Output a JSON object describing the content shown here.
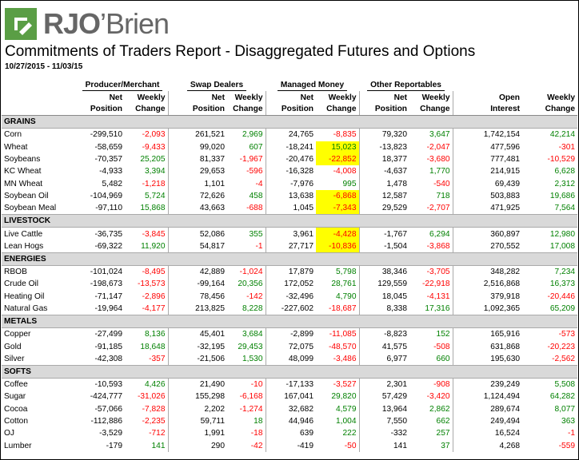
{
  "logo": {
    "text_r": "RJO",
    "text_rest": "’Brien",
    "brand_color": "#5a9e45"
  },
  "report": {
    "title": "Commitments of Traders Report - Disaggregated Futures and Options",
    "date_range": "10/27/2015 - 11/03/15"
  },
  "groups": [
    "Producer/Merchant",
    "Swap Dealers",
    "Managed Money",
    "Other Reportables"
  ],
  "sub_headers": {
    "net_position": [
      "Net",
      "Position"
    ],
    "weekly_change": [
      "Weekly",
      "Change"
    ],
    "open_interest": [
      "Open",
      "Interest"
    ]
  },
  "colors": {
    "positive": "#008000",
    "negative": "#ff0000",
    "highlight": "#ffff00",
    "section": "#d9d9d9"
  },
  "sections": [
    {
      "name": "GRAINS",
      "rows": [
        {
          "name": "Corn",
          "v": [
            "-299,510",
            "-2,093",
            "261,521",
            "2,969",
            "24,765",
            "-8,835",
            "79,320",
            "3,647",
            "1,742,154",
            "42,214"
          ],
          "hl": []
        },
        {
          "name": "Wheat",
          "v": [
            "-58,659",
            "-9,433",
            "99,020",
            "607",
            "-18,241",
            "15,023",
            "-13,823",
            "-2,047",
            "477,596",
            "-301"
          ],
          "hl": [
            5
          ]
        },
        {
          "name": "Soybeans",
          "v": [
            "-70,357",
            "25,205",
            "81,337",
            "-1,967",
            "-20,476",
            "-22,852",
            "18,377",
            "-3,680",
            "777,481",
            "-10,529"
          ],
          "hl": [
            5
          ]
        },
        {
          "name": "KC Wheat",
          "v": [
            "-4,933",
            "3,394",
            "29,653",
            "-596",
            "-16,328",
            "-4,008",
            "-4,637",
            "1,770",
            "214,915",
            "6,628"
          ],
          "hl": []
        },
        {
          "name": "MN Wheat",
          "v": [
            "5,482",
            "-1,218",
            "1,101",
            "-4",
            "-7,976",
            "995",
            "1,478",
            "-540",
            "69,439",
            "2,312"
          ],
          "hl": []
        },
        {
          "name": "Soybean Oil",
          "v": [
            "-104,969",
            "5,724",
            "72,626",
            "458",
            "13,638",
            "-6,868",
            "12,587",
            "718",
            "503,883",
            "19,686"
          ],
          "hl": [
            5
          ]
        },
        {
          "name": "Soybean Meal",
          "v": [
            "-97,110",
            "15,868",
            "43,663",
            "-688",
            "1,045",
            "-7,343",
            "29,529",
            "-2,707",
            "471,925",
            "7,564"
          ],
          "hl": [
            5
          ]
        }
      ]
    },
    {
      "name": "LIVESTOCK",
      "rows": [
        {
          "name": "Live Cattle",
          "v": [
            "-36,735",
            "-3,845",
            "52,086",
            "355",
            "3,961",
            "-4,428",
            "-1,767",
            "6,294",
            "360,897",
            "12,980"
          ],
          "hl": [
            5
          ]
        },
        {
          "name": "Lean Hogs",
          "v": [
            "-69,322",
            "11,920",
            "54,817",
            "-1",
            "27,717",
            "-10,836",
            "-1,504",
            "-3,868",
            "270,552",
            "17,008"
          ],
          "hl": [
            5
          ]
        }
      ]
    },
    {
      "name": "ENERGIES",
      "rows": [
        {
          "name": "RBOB",
          "v": [
            "-101,024",
            "-8,495",
            "42,889",
            "-1,024",
            "17,879",
            "5,798",
            "38,346",
            "-3,705",
            "348,282",
            "7,234"
          ],
          "hl": []
        },
        {
          "name": "Crude Oil",
          "v": [
            "-198,673",
            "-13,573",
            "-99,164",
            "20,356",
            "172,052",
            "28,761",
            "129,559",
            "-22,918",
            "2,516,868",
            "16,373"
          ],
          "hl": []
        },
        {
          "name": "Heating Oil",
          "v": [
            "-71,147",
            "-2,896",
            "78,456",
            "-142",
            "-32,496",
            "4,790",
            "18,045",
            "-4,131",
            "379,918",
            "-20,446"
          ],
          "hl": []
        },
        {
          "name": "Natural Gas",
          "v": [
            "-19,964",
            "-4,177",
            "213,825",
            "8,228",
            "-227,602",
            "-18,687",
            "8,338",
            "17,316",
            "1,092,365",
            "65,209"
          ],
          "hl": []
        }
      ]
    },
    {
      "name": "METALS",
      "rows": [
        {
          "name": "Copper",
          "v": [
            "-27,499",
            "8,136",
            "45,401",
            "3,684",
            "-2,899",
            "-11,085",
            "-8,823",
            "152",
            "165,916",
            "-573"
          ],
          "hl": []
        },
        {
          "name": "Gold",
          "v": [
            "-91,185",
            "18,648",
            "-32,195",
            "29,453",
            "72,075",
            "-48,570",
            "41,575",
            "-508",
            "631,868",
            "-20,223"
          ],
          "hl": []
        },
        {
          "name": "Silver",
          "v": [
            "-42,308",
            "-357",
            "-21,506",
            "1,530",
            "48,099",
            "-3,486",
            "6,977",
            "660",
            "195,630",
            "-2,562"
          ],
          "hl": []
        }
      ]
    },
    {
      "name": "SOFTS",
      "rows": [
        {
          "name": "Coffee",
          "v": [
            "-10,593",
            "4,426",
            "21,490",
            "-10",
            "-17,133",
            "-3,527",
            "2,301",
            "-908",
            "239,249",
            "5,508"
          ],
          "hl": []
        },
        {
          "name": "Sugar",
          "v": [
            "-424,777",
            "-31,026",
            "155,298",
            "-6,168",
            "167,041",
            "29,820",
            "57,429",
            "-3,420",
            "1,124,494",
            "64,282"
          ],
          "hl": []
        },
        {
          "name": "Cocoa",
          "v": [
            "-57,066",
            "-7,828",
            "2,202",
            "-1,274",
            "32,682",
            "4,579",
            "13,964",
            "2,862",
            "289,674",
            "8,077"
          ],
          "hl": []
        },
        {
          "name": "Cotton",
          "v": [
            "-112,886",
            "-2,235",
            "59,711",
            "18",
            "44,946",
            "1,004",
            "7,550",
            "662",
            "249,494",
            "363"
          ],
          "hl": []
        },
        {
          "name": "OJ",
          "v": [
            "-3,529",
            "-712",
            "1,991",
            "-18",
            "639",
            "222",
            "-332",
            "257",
            "16,524",
            "-1"
          ],
          "hl": []
        },
        {
          "name": "Lumber",
          "v": [
            "-179",
            "141",
            "290",
            "-42",
            "-419",
            "-50",
            "141",
            "37",
            "4,268",
            "-559"
          ],
          "hl": []
        }
      ]
    }
  ]
}
